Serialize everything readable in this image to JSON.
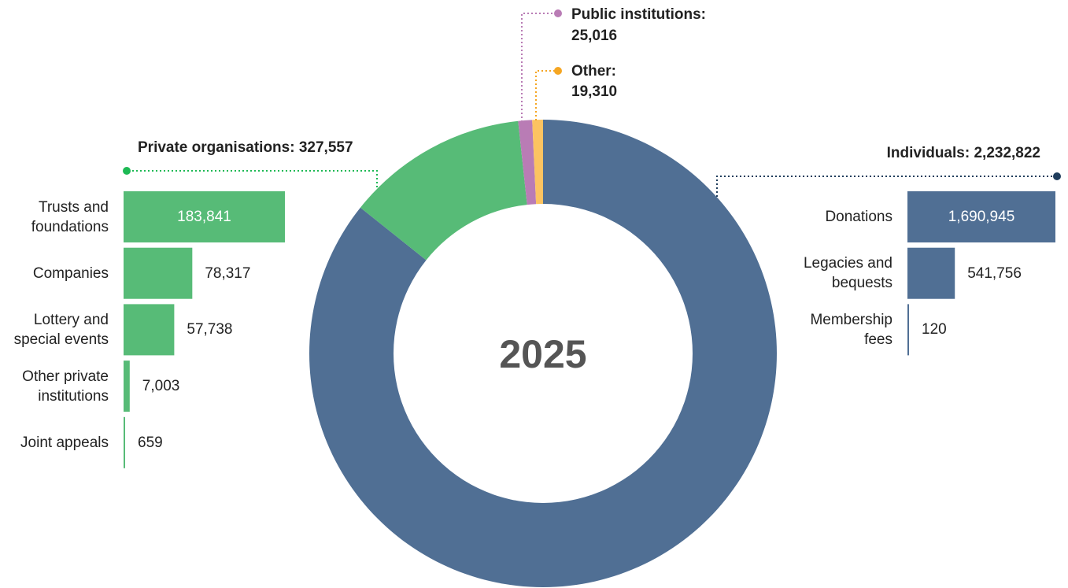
{
  "chart_data": [
    {
      "type": "donut",
      "center_label": "2025",
      "categories": [
        "Individuals:",
        "Private organisations:",
        "Public institutions:",
        "Other:"
      ],
      "values": [
        2232822,
        327557,
        25016,
        19310
      ],
      "value_labels": [
        "2,232,822",
        "327,557",
        "25,016",
        "19,310"
      ],
      "colors": [
        "#506f94",
        "#57bb77",
        "#b97cb5",
        "#fcc361"
      ]
    },
    {
      "type": "bar",
      "orientation": "horizontal",
      "color": "#57bb77",
      "categories": [
        "Trusts and foundations",
        "Companies",
        "Lottery and special events",
        "Other private institutions",
        "Joint appeals"
      ],
      "values": [
        183841,
        78317,
        57738,
        7003,
        659
      ],
      "value_labels": [
        "183,841",
        "78,317",
        "57,738",
        "7,003",
        "659"
      ]
    },
    {
      "type": "bar",
      "orientation": "horizontal",
      "color": "#506f94",
      "categories": [
        "Donations",
        "Legacies and bequests",
        "Membership fees"
      ],
      "values": [
        1690945,
        541756,
        120
      ],
      "value_labels": [
        "1,690,945",
        "541,756",
        "120"
      ]
    }
  ]
}
